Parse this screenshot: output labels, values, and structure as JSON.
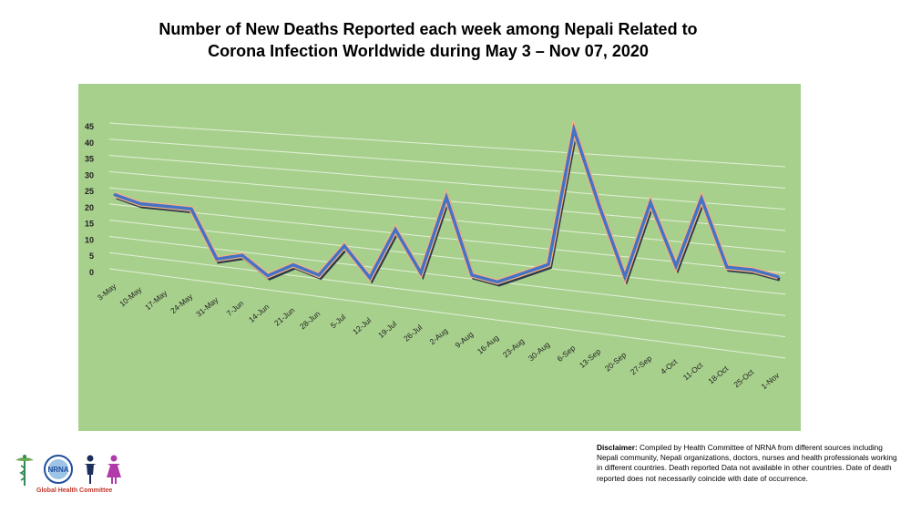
{
  "title": {
    "line1": "Number of New Deaths Reported each week among Nepali Related to",
    "line2": "Corona Infection Worldwide during May 3 – Nov 07, 2020"
  },
  "chart_data": {
    "type": "line",
    "title": "Number of New Deaths Reported each week among Nepali Related to Corona Infection Worldwide during May 3 – Nov 07, 2020",
    "categories": [
      "3-May",
      "10-May",
      "17-May",
      "24-May",
      "31-May",
      "7-Jun",
      "14-Jun",
      "21-Jun",
      "28-Jun",
      "5-Jul",
      "12-Jul",
      "19-Jul",
      "26-Jul",
      "2-Aug",
      "9-Aug",
      "16-Aug",
      "23-Aug",
      "30-Aug",
      "6-Sep",
      "13-Sep",
      "20-Sep",
      "27-Sep",
      "4-Oct",
      "11-Oct",
      "18-Oct",
      "25-Oct",
      "1-Nov"
    ],
    "values": [
      24,
      22,
      22,
      22,
      8,
      10,
      5,
      9,
      7,
      16,
      8,
      22,
      11,
      32,
      12,
      11,
      14,
      17,
      52,
      33,
      16,
      35,
      20,
      37,
      21,
      21,
      20
    ],
    "y_ticks": [
      "0",
      "5",
      "10",
      "15",
      "20",
      "25",
      "30",
      "35",
      "40",
      "45"
    ],
    "ylim": [
      0,
      45
    ],
    "xlabel": "",
    "ylabel": "",
    "grid": true,
    "legend": "none",
    "style": "3d-line",
    "line_color": "#4472c4",
    "line_edge_color": "#f4b183",
    "background_color": "#a8d08d",
    "grid_color": "#e2f0d9"
  },
  "disclaimer": {
    "label": "Disclaimer:",
    "text": " Compiled by Health Committee  of NRNA from different sources including Nepali community, Nepali organizations, doctors, nurses and health professionals working in different countries. Death  reported  Data not available in other countries. Date of death reported does not necessarily coincide with date of occurrence."
  },
  "logo": {
    "badge_text": "NRNA",
    "caption": "Global Health Committee",
    "icons": [
      "caduceus-icon",
      "nrna-globe-logo",
      "person-male-icon",
      "person-female-icon"
    ]
  }
}
